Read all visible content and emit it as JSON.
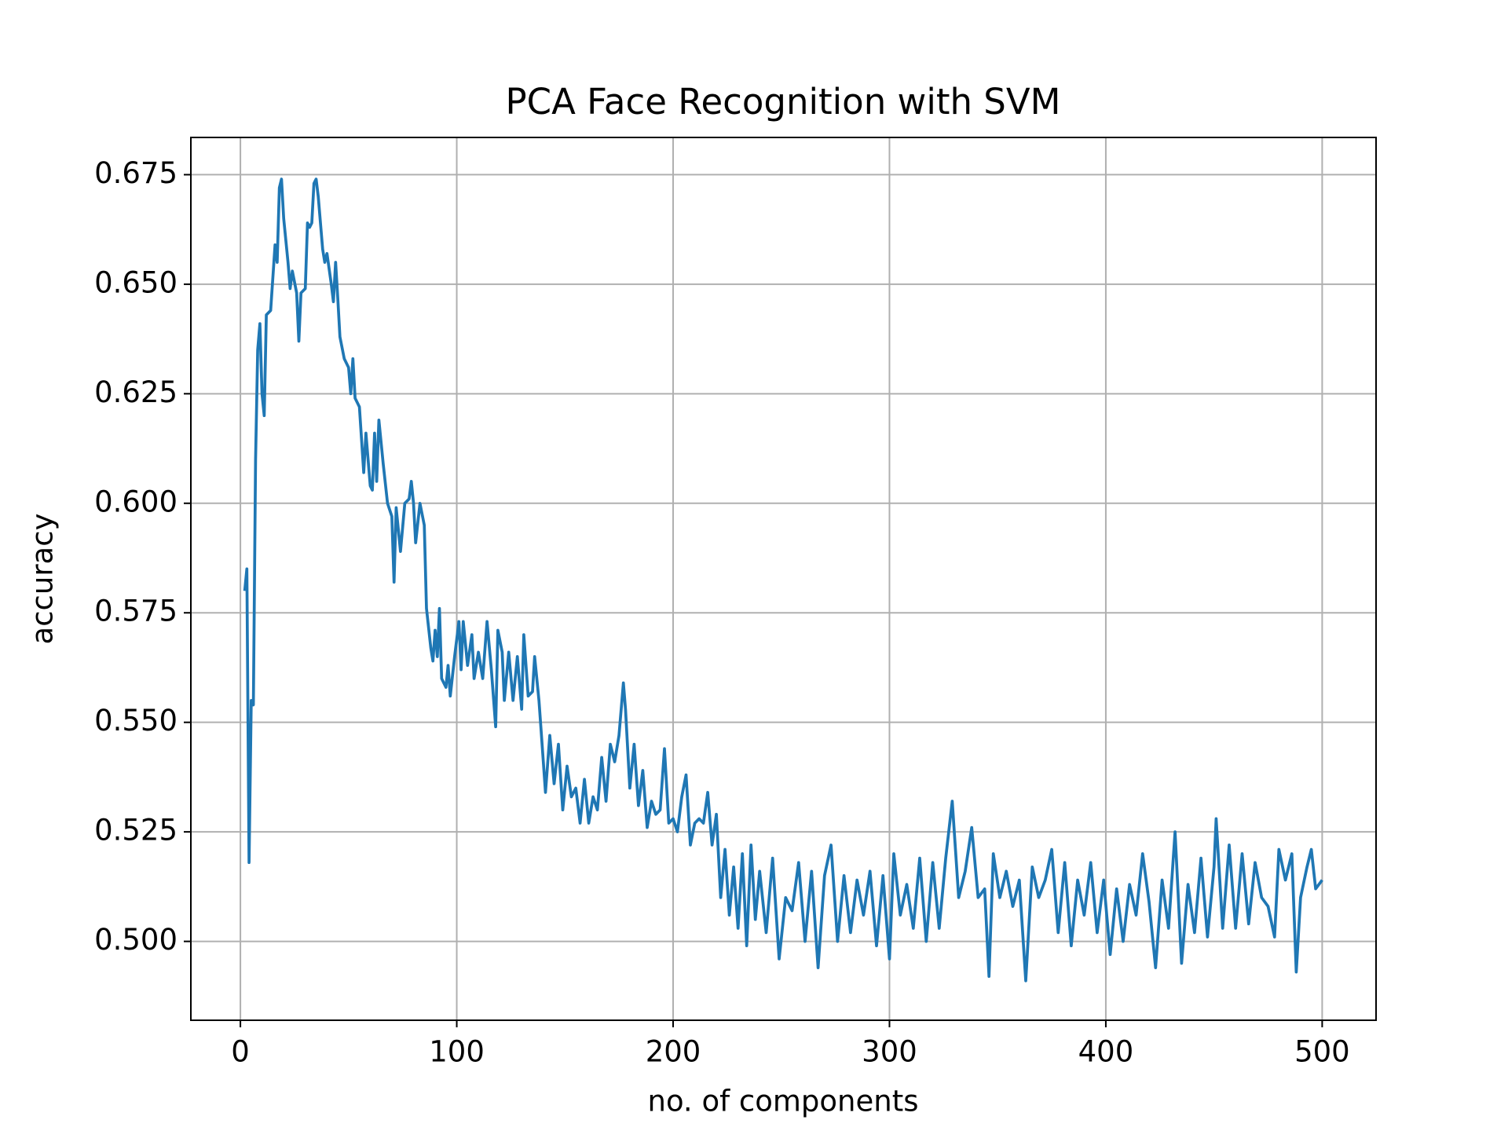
{
  "chart_data": {
    "type": "line",
    "title": "PCA Face Recognition with SVM",
    "x_label": "no. of components",
    "y_label": "accuracy",
    "grid": true,
    "xlim": [
      -22.9,
      524.9
    ],
    "ylim": [
      0.482,
      0.6835
    ],
    "xticks": [
      0,
      100,
      200,
      300,
      400,
      500
    ],
    "yticks": [
      {
        "value": 0.5,
        "label": "0.500"
      },
      0.525,
      {
        "value": 0.55,
        "label": "0.550"
      },
      0.575,
      {
        "value": 0.6,
        "label": "0.600"
      },
      0.625,
      {
        "value": 0.65,
        "label": "0.650"
      },
      0.675
    ],
    "x": [
      2,
      3,
      4,
      5,
      6,
      7,
      8,
      9,
      10,
      11,
      12,
      14,
      16,
      17,
      18,
      19,
      20,
      22,
      23,
      24,
      26,
      27,
      28,
      30,
      31,
      32,
      33,
      34,
      35,
      36,
      38,
      39,
      40,
      42,
      43,
      44,
      45,
      46,
      48,
      50,
      51,
      52,
      53,
      55,
      57,
      58,
      60,
      61,
      62,
      63,
      64,
      66,
      68,
      70,
      71,
      72,
      74,
      76,
      78,
      79,
      80,
      81,
      83,
      85,
      86,
      88,
      89,
      90,
      91,
      92,
      93,
      95,
      96,
      97,
      99,
      101,
      102,
      103,
      105,
      107,
      108,
      110,
      112,
      114,
      116,
      118,
      119,
      121,
      122,
      124,
      126,
      128,
      130,
      131,
      133,
      135,
      136,
      138,
      139,
      141,
      143,
      145,
      147,
      149,
      151,
      153,
      155,
      157,
      159,
      161,
      163,
      165,
      167,
      169,
      171,
      173,
      175,
      177,
      178,
      180,
      182,
      184,
      186,
      188,
      190,
      192,
      194,
      196,
      198,
      200,
      202,
      204,
      206,
      208,
      210,
      212,
      214,
      216,
      218,
      220,
      222,
      224,
      226,
      228,
      230,
      232,
      234,
      236,
      238,
      240,
      243,
      246,
      249,
      252,
      255,
      258,
      261,
      264,
      267,
      270,
      273,
      276,
      279,
      282,
      285,
      288,
      291,
      294,
      297,
      300,
      302,
      305,
      308,
      311,
      314,
      317,
      320,
      323,
      326,
      329,
      332,
      335,
      338,
      341,
      344,
      346,
      348,
      351,
      354,
      357,
      360,
      363,
      366,
      369,
      372,
      375,
      378,
      381,
      384,
      387,
      390,
      393,
      396,
      399,
      402,
      405,
      408,
      411,
      414,
      417,
      420,
      423,
      426,
      429,
      432,
      435,
      438,
      441,
      444,
      447,
      450,
      451,
      454,
      457,
      460,
      463,
      466,
      469,
      472,
      475,
      478,
      480,
      483,
      486,
      488,
      490,
      493,
      495,
      497,
      500
    ],
    "series": [
      {
        "color": "#1f77b4",
        "values": [
          0.58,
          0.585,
          0.518,
          0.555,
          0.554,
          0.61,
          0.635,
          0.641,
          0.625,
          0.62,
          0.643,
          0.644,
          0.659,
          0.655,
          0.672,
          0.674,
          0.665,
          0.655,
          0.649,
          0.653,
          0.648,
          0.637,
          0.648,
          0.649,
          0.664,
          0.663,
          0.664,
          0.673,
          0.674,
          0.67,
          0.658,
          0.655,
          0.657,
          0.65,
          0.646,
          0.655,
          0.647,
          0.638,
          0.633,
          0.631,
          0.625,
          0.633,
          0.624,
          0.622,
          0.607,
          0.616,
          0.604,
          0.603,
          0.616,
          0.605,
          0.619,
          0.609,
          0.6,
          0.597,
          0.582,
          0.599,
          0.589,
          0.6,
          0.601,
          0.605,
          0.6,
          0.591,
          0.6,
          0.595,
          0.576,
          0.567,
          0.564,
          0.571,
          0.565,
          0.576,
          0.56,
          0.558,
          0.563,
          0.556,
          0.565,
          0.573,
          0.562,
          0.573,
          0.563,
          0.57,
          0.56,
          0.566,
          0.56,
          0.573,
          0.562,
          0.549,
          0.571,
          0.566,
          0.555,
          0.566,
          0.555,
          0.565,
          0.553,
          0.57,
          0.556,
          0.557,
          0.565,
          0.555,
          0.548,
          0.534,
          0.547,
          0.536,
          0.545,
          0.53,
          0.54,
          0.533,
          0.535,
          0.527,
          0.537,
          0.527,
          0.533,
          0.53,
          0.542,
          0.532,
          0.545,
          0.541,
          0.547,
          0.559,
          0.553,
          0.535,
          0.545,
          0.531,
          0.539,
          0.526,
          0.532,
          0.529,
          0.53,
          0.544,
          0.527,
          0.528,
          0.525,
          0.533,
          0.538,
          0.522,
          0.527,
          0.528,
          0.527,
          0.534,
          0.522,
          0.529,
          0.51,
          0.521,
          0.506,
          0.517,
          0.503,
          0.52,
          0.499,
          0.522,
          0.505,
          0.516,
          0.502,
          0.519,
          0.496,
          0.51,
          0.507,
          0.518,
          0.5,
          0.516,
          0.494,
          0.515,
          0.522,
          0.5,
          0.515,
          0.502,
          0.514,
          0.506,
          0.516,
          0.499,
          0.515,
          0.496,
          0.52,
          0.506,
          0.513,
          0.503,
          0.519,
          0.5,
          0.518,
          0.503,
          0.519,
          0.532,
          0.51,
          0.516,
          0.526,
          0.51,
          0.512,
          0.492,
          0.52,
          0.51,
          0.516,
          0.508,
          0.514,
          0.491,
          0.517,
          0.51,
          0.514,
          0.521,
          0.502,
          0.518,
          0.499,
          0.514,
          0.506,
          0.518,
          0.502,
          0.514,
          0.497,
          0.512,
          0.5,
          0.513,
          0.506,
          0.52,
          0.509,
          0.494,
          0.514,
          0.503,
          0.525,
          0.495,
          0.513,
          0.502,
          0.519,
          0.501,
          0.517,
          0.528,
          0.503,
          0.522,
          0.503,
          0.52,
          0.504,
          0.518,
          0.51,
          0.508,
          0.501,
          0.521,
          0.514,
          0.52,
          0.493,
          0.51,
          0.517,
          0.521,
          0.512,
          0.514
        ]
      }
    ]
  }
}
